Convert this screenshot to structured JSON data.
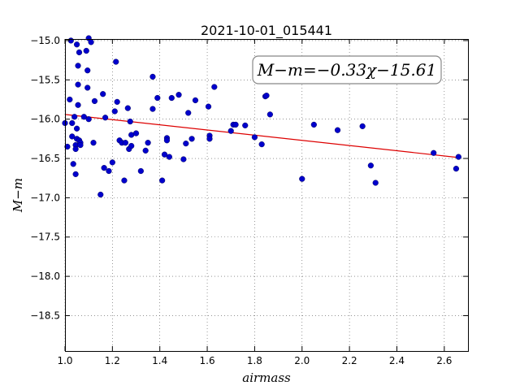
{
  "chart_data": {
    "type": "scatter",
    "title": "2021-10-01_015441",
    "xlabel": "airmass",
    "ylabel": "M−m",
    "xlim": [
      1.0,
      2.7
    ],
    "ylim": [
      -14.98,
      -18.95
    ],
    "y_inverted": true,
    "grid": true,
    "xticks": [
      "1.0",
      "1.2",
      "1.4",
      "1.6",
      "1.8",
      "2.0",
      "2.2",
      "2.4",
      "2.6"
    ],
    "yticks": [
      "−15.0",
      "−15.5",
      "−16.0",
      "−16.5",
      "−17.0",
      "−17.5",
      "−18.0",
      "−18.5"
    ],
    "annotation": "M−m=−0.33χ−15.61",
    "point_color": "#0000cc",
    "fit_color": "#dd0000",
    "fit": {
      "slope": -0.33,
      "intercept": -15.61,
      "x_range": [
        1.0,
        2.66
      ]
    },
    "series": [
      {
        "points": [
          [
            1.0,
            -16.05
          ],
          [
            1.01,
            -16.35
          ],
          [
            1.02,
            -15.75
          ],
          [
            1.025,
            -15.0
          ],
          [
            1.03,
            -16.22
          ],
          [
            1.03,
            -16.05
          ],
          [
            1.035,
            -16.57
          ],
          [
            1.04,
            -15.97
          ],
          [
            1.045,
            -16.33
          ],
          [
            1.045,
            -16.38
          ],
          [
            1.045,
            -16.7
          ],
          [
            1.05,
            -16.12
          ],
          [
            1.05,
            -16.25
          ],
          [
            1.05,
            -15.05
          ],
          [
            1.055,
            -15.32
          ],
          [
            1.055,
            -15.56
          ],
          [
            1.055,
            -15.82
          ],
          [
            1.06,
            -15.15
          ],
          [
            1.06,
            -16.27
          ],
          [
            1.065,
            -16.3
          ],
          [
            1.065,
            -16.33
          ],
          [
            1.08,
            -15.97
          ],
          [
            1.09,
            -15.13
          ],
          [
            1.095,
            -15.38
          ],
          [
            1.095,
            -15.6
          ],
          [
            1.1,
            -14.97
          ],
          [
            1.1,
            -16.0
          ],
          [
            1.11,
            -15.02
          ],
          [
            1.12,
            -16.3
          ],
          [
            1.125,
            -15.77
          ],
          [
            1.15,
            -16.96
          ],
          [
            1.16,
            -15.68
          ],
          [
            1.165,
            -16.62
          ],
          [
            1.17,
            -15.98
          ],
          [
            1.185,
            -16.66
          ],
          [
            1.2,
            -16.55
          ],
          [
            1.21,
            -15.9
          ],
          [
            1.215,
            -15.27
          ],
          [
            1.22,
            -15.78
          ],
          [
            1.23,
            -16.27
          ],
          [
            1.24,
            -16.3
          ],
          [
            1.25,
            -16.78
          ],
          [
            1.255,
            -16.3
          ],
          [
            1.265,
            -15.86
          ],
          [
            1.27,
            -16.38
          ],
          [
            1.275,
            -16.03
          ],
          [
            1.28,
            -16.34
          ],
          [
            1.28,
            -16.2
          ],
          [
            1.3,
            -16.18
          ],
          [
            1.32,
            -16.66
          ],
          [
            1.34,
            -16.4
          ],
          [
            1.35,
            -16.3
          ],
          [
            1.37,
            -15.46
          ],
          [
            1.37,
            -15.87
          ],
          [
            1.39,
            -15.73
          ],
          [
            1.41,
            -16.78
          ],
          [
            1.42,
            -16.45
          ],
          [
            1.43,
            -16.24
          ],
          [
            1.43,
            -16.27
          ],
          [
            1.44,
            -16.48
          ],
          [
            1.45,
            -15.73
          ],
          [
            1.48,
            -15.69
          ],
          [
            1.5,
            -16.51
          ],
          [
            1.51,
            -16.31
          ],
          [
            1.52,
            -15.92
          ],
          [
            1.535,
            -16.25
          ],
          [
            1.55,
            -15.76
          ],
          [
            1.605,
            -15.84
          ],
          [
            1.61,
            -16.21
          ],
          [
            1.61,
            -16.25
          ],
          [
            1.63,
            -15.59
          ],
          [
            1.7,
            -16.15
          ],
          [
            1.71,
            -16.07
          ],
          [
            1.72,
            -16.07
          ],
          [
            1.76,
            -16.08
          ],
          [
            1.8,
            -16.23
          ],
          [
            1.83,
            -16.32
          ],
          [
            1.845,
            -15.71
          ],
          [
            1.85,
            -15.7
          ],
          [
            1.865,
            -15.94
          ],
          [
            2.0,
            -16.76
          ],
          [
            2.05,
            -16.07
          ],
          [
            2.15,
            -16.14
          ],
          [
            2.255,
            -16.09
          ],
          [
            2.29,
            -16.59
          ],
          [
            2.31,
            -16.81
          ],
          [
            2.555,
            -16.43
          ],
          [
            2.65,
            -16.63
          ],
          [
            2.66,
            -16.48
          ]
        ]
      }
    ]
  }
}
